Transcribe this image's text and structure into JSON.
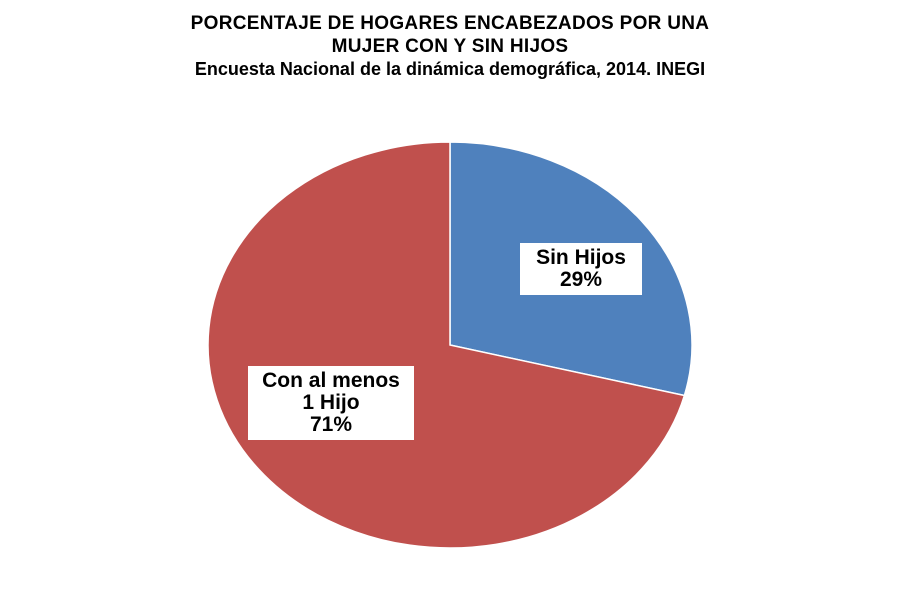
{
  "chart_data": {
    "type": "pie",
    "title_lines": [
      "PORCENTAJE DE HOGARES ENCABEZADOS POR UNA",
      "MUJER CON Y SIN HIJOS",
      "Encuesta Nacional de la dinámica demográfica, 2014. INEGI"
    ],
    "slices": [
      {
        "name_lines": [
          "Sin Hijos"
        ],
        "value": 29,
        "value_label": "29%",
        "color": "#4F81BD"
      },
      {
        "name_lines": [
          "Con al menos",
          "1 Hijo"
        ],
        "value": 71,
        "value_label": "71%",
        "color": "#C0504D"
      }
    ],
    "legend": "none"
  }
}
